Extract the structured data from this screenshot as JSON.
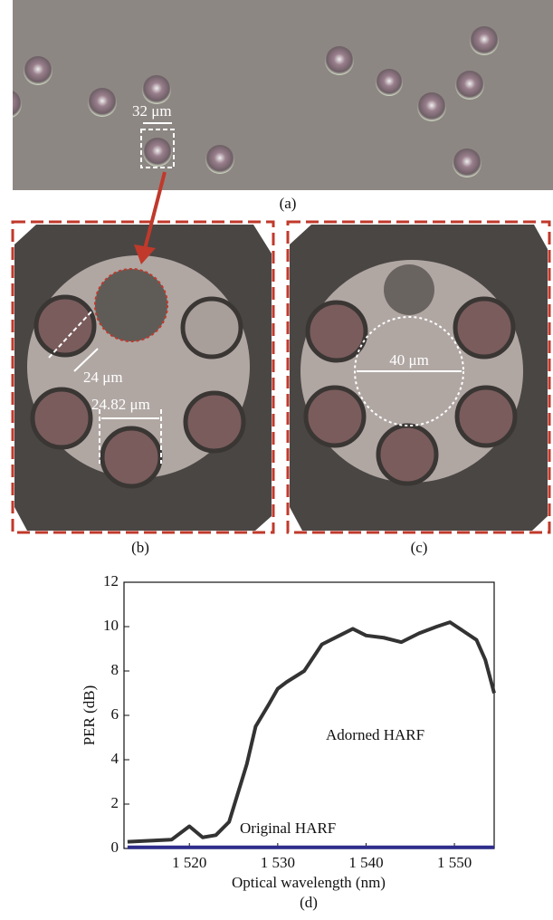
{
  "panels": {
    "a": {
      "label": "(a)",
      "annotation": "32 μm"
    },
    "b": {
      "label": "(b)",
      "annotations": [
        "24 μm",
        "24.82 μm"
      ]
    },
    "c": {
      "label": "(c)",
      "annotation": "40 μm"
    }
  },
  "chart_data": {
    "type": "line",
    "panel_label": "(d)",
    "x_label": "Optical wavelength (nm)",
    "y_label": "PER (dB)",
    "x": [
      1513,
      1518,
      1520,
      1521.5,
      1523,
      1524.5,
      1525.5,
      1526.5,
      1527.5,
      1529,
      1530,
      1531,
      1533,
      1535,
      1537,
      1538.5,
      1540,
      1542,
      1544,
      1546,
      1548,
      1549.5,
      1551,
      1552.5,
      1553.5,
      1554.5
    ],
    "series": [
      {
        "name": "Adorned HARF",
        "color": "#333333",
        "values": [
          0.3,
          0.4,
          1.0,
          0.5,
          0.6,
          1.2,
          2.5,
          3.8,
          5.5,
          6.5,
          7.2,
          7.5,
          8.0,
          9.2,
          9.6,
          9.9,
          9.6,
          9.5,
          9.3,
          9.7,
          10.0,
          10.2,
          9.8,
          9.4,
          8.5,
          7.0
        ]
      },
      {
        "name": "Original HARF",
        "color": "#2e2e8c",
        "values": [
          0.05,
          0.05,
          0.05,
          0.05,
          0.05,
          0.05,
          0.05,
          0.05,
          0.05,
          0.05,
          0.05,
          0.05,
          0.05,
          0.05,
          0.05,
          0.05,
          0.05,
          0.05,
          0.05,
          0.05,
          0.05,
          0.05,
          0.05,
          0.05,
          0.05,
          0.05
        ]
      }
    ],
    "xlim": [
      1512.6,
      1554.5
    ],
    "ylim": [
      0,
      12
    ],
    "xticks": [
      {
        "value": 1520,
        "label": "1 520"
      },
      {
        "value": 1530,
        "label": "1 530"
      },
      {
        "value": 1540,
        "label": "1 540"
      },
      {
        "value": 1550,
        "label": "1 550"
      }
    ],
    "yticks": [
      0,
      2,
      4,
      6,
      8,
      10,
      12
    ]
  }
}
